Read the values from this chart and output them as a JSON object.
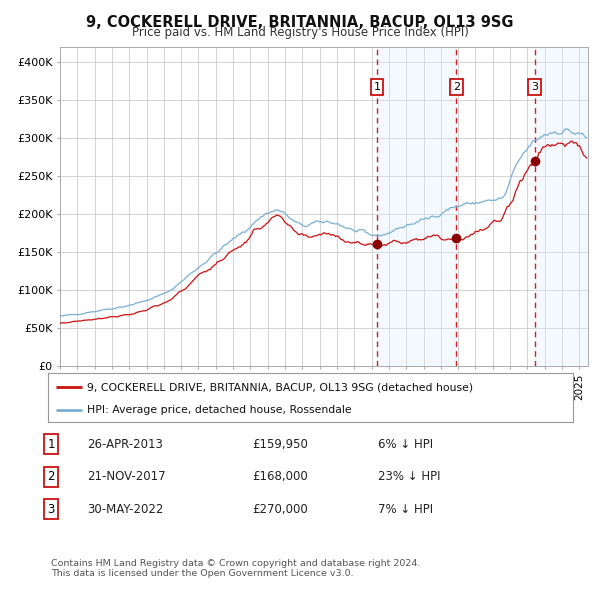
{
  "title": "9, COCKERELL DRIVE, BRITANNIA, BACUP, OL13 9SG",
  "subtitle": "Price paid vs. HM Land Registry's House Price Index (HPI)",
  "ylim": [
    0,
    420000
  ],
  "yticks": [
    0,
    50000,
    100000,
    150000,
    200000,
    250000,
    300000,
    350000,
    400000
  ],
  "ytick_labels": [
    "£0",
    "£50K",
    "£100K",
    "£150K",
    "£200K",
    "£250K",
    "£300K",
    "£350K",
    "£400K"
  ],
  "hpi_color": "#7aafd4",
  "price_color": "#cc1111",
  "marker_color": "#880000",
  "bg_color": "#ffffff",
  "grid_color": "#cccccc",
  "shade_color": "#ddeeff",
  "transactions": [
    {
      "num": 1,
      "date_str": "26-APR-2013",
      "date_x": 2013.32,
      "price": 159950,
      "hpi_pct": "6% ↓ HPI"
    },
    {
      "num": 2,
      "date_str": "21-NOV-2017",
      "date_x": 2017.89,
      "price": 168000,
      "hpi_pct": "23% ↓ HPI"
    },
    {
      "num": 3,
      "date_str": "30-MAY-2022",
      "date_x": 2022.41,
      "price": 270000,
      "hpi_pct": "7% ↓ HPI"
    }
  ],
  "legend_line1": "9, COCKERELL DRIVE, BRITANNIA, BACUP, OL13 9SG (detached house)",
  "legend_line2": "HPI: Average price, detached house, Rossendale",
  "footer1": "Contains HM Land Registry data © Crown copyright and database right 2024.",
  "footer2": "This data is licensed under the Open Government Licence v3.0.",
  "xmin": 1995.0,
  "xmax": 2025.5
}
